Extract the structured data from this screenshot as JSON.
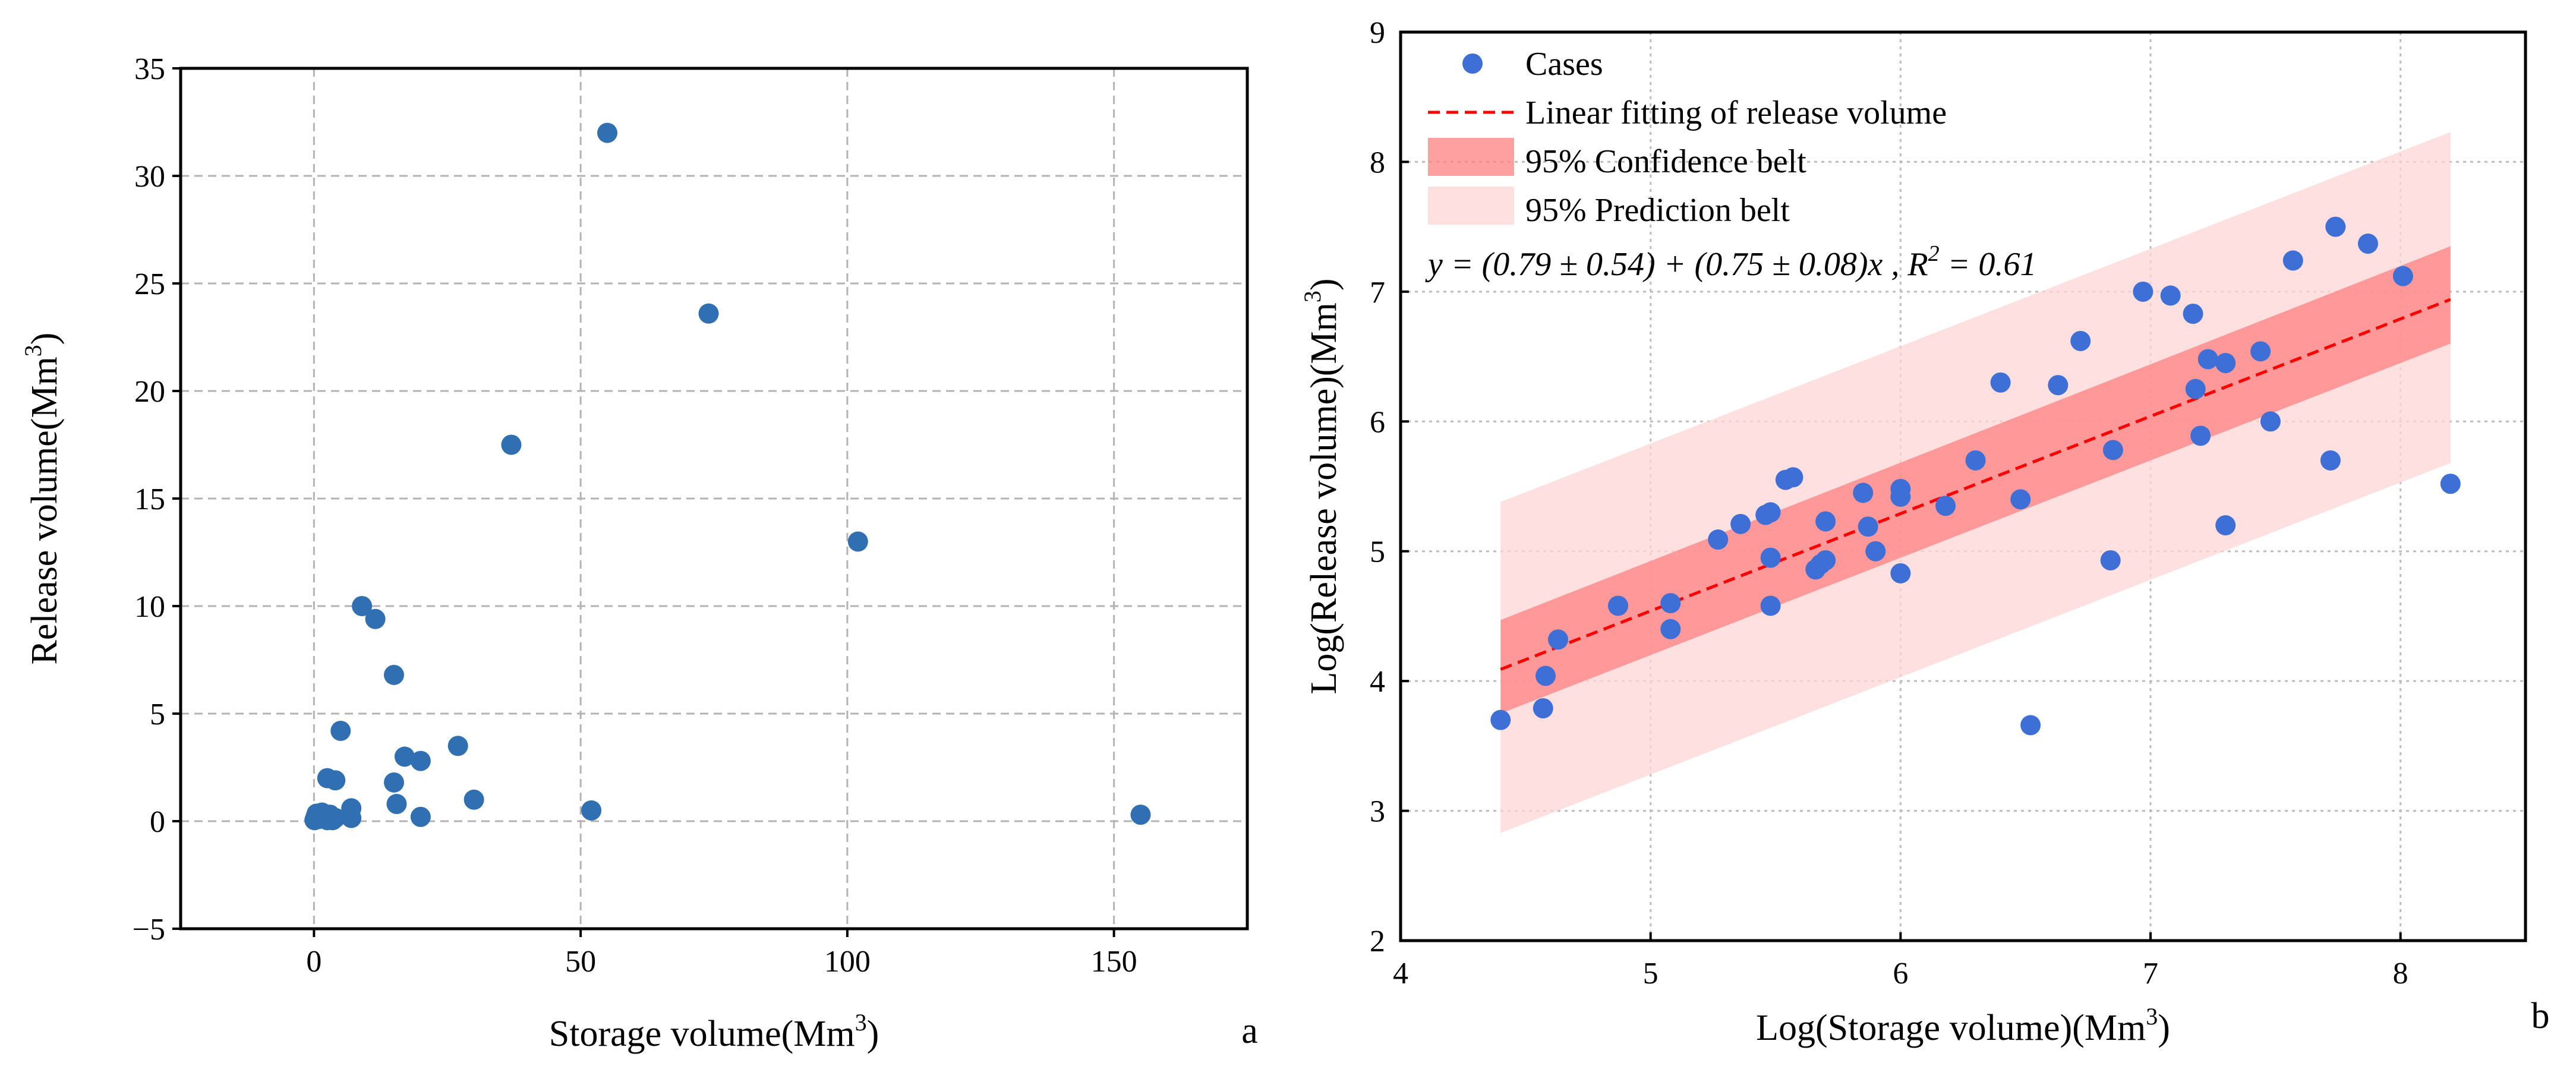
{
  "figure": {
    "panel_a_label": "a",
    "panel_b_label": "b"
  },
  "colors": {
    "marker_a": "#2f6fb2",
    "marker_b": "#3d6fd6",
    "fit_line": "#ff0000",
    "confidence": "#ff8080",
    "prediction": "#ffd6d6"
  },
  "chart_data": [
    {
      "type": "scatter",
      "title": "",
      "xlabel": "Storage volume(Mm",
      "xlabel_sup": "3",
      "xlabel_suffix": ")",
      "ylabel": "Release volume(Mm",
      "ylabel_sup": "3",
      "ylabel_suffix": ")",
      "xlim": [
        -25,
        175
      ],
      "ylim": [
        -5,
        35
      ],
      "xticks": [
        0,
        50,
        100,
        150
      ],
      "yticks": [
        -5,
        0,
        5,
        10,
        15,
        20,
        25,
        30,
        35
      ],
      "xtick_labels": [
        "0",
        "50",
        "100",
        "150"
      ],
      "ytick_labels": [
        "−5",
        "0",
        "5",
        "10",
        "15",
        "20",
        "25",
        "30",
        "35"
      ],
      "grid": true,
      "points": [
        [
          0.1,
          0.05
        ],
        [
          0.3,
          0.2
        ],
        [
          0.5,
          0.35
        ],
        [
          0.8,
          0.1
        ],
        [
          1.0,
          0.3
        ],
        [
          1.5,
          0.4
        ],
        [
          2.0,
          0.2
        ],
        [
          2.5,
          0.05
        ],
        [
          3.0,
          0.3
        ],
        [
          3.5,
          0.05
        ],
        [
          4.0,
          0.15
        ],
        [
          2.5,
          2.0
        ],
        [
          4.0,
          1.9
        ],
        [
          5.0,
          4.2
        ],
        [
          7.0,
          0.6
        ],
        [
          7.0,
          0.15
        ],
        [
          9.0,
          10.0
        ],
        [
          11.5,
          9.4
        ],
        [
          15.0,
          6.8
        ],
        [
          15.0,
          1.8
        ],
        [
          15.5,
          0.8
        ],
        [
          17.0,
          3.0
        ],
        [
          20.0,
          2.8
        ],
        [
          20.0,
          0.2
        ],
        [
          27.0,
          3.5
        ],
        [
          30.0,
          1.0
        ],
        [
          37.0,
          17.5
        ],
        [
          52.0,
          0.5
        ],
        [
          55.0,
          32.0
        ],
        [
          74.0,
          23.6
        ],
        [
          102.0,
          13.0
        ],
        [
          155.0,
          0.3
        ]
      ]
    },
    {
      "type": "scatter",
      "title": "",
      "xlabel": "Log(Storage volume)(Mm",
      "xlabel_sup": "3",
      "xlabel_suffix": ")",
      "ylabel": "Log(Release volume)(Mm",
      "ylabel_sup": "3",
      "ylabel_suffix": ")",
      "xlim": [
        4,
        8.5
      ],
      "ylim": [
        2,
        9
      ],
      "xticks": [
        4,
        5,
        6,
        7,
        8
      ],
      "yticks": [
        2,
        3,
        4,
        5,
        6,
        7,
        8,
        9
      ],
      "xtick_labels": [
        "4",
        "5",
        "6",
        "7",
        "8"
      ],
      "ytick_labels": [
        "2",
        "3",
        "4",
        "5",
        "6",
        "7",
        "8",
        "9"
      ],
      "grid": true,
      "legend_position": "top-left",
      "legend": [
        {
          "kind": "marker",
          "label": "Cases"
        },
        {
          "kind": "dashed-line",
          "label": "Linear fitting of release volume"
        },
        {
          "kind": "confidence-patch",
          "label": "95% Confidence belt"
        },
        {
          "kind": "prediction-patch",
          "label": "95% Prediction belt"
        }
      ],
      "equation": "y = (0.79 ± 0.54) + (0.75 ± 0.08)x , R",
      "equation_sup": "2",
      "equation_suffix": " = 0.61",
      "fit": {
        "intercept": 0.79,
        "slope": 0.75,
        "x_range": [
          4.4,
          8.2
        ],
        "r2": 0.61
      },
      "confidence_band": {
        "x": [
          4.4,
          8.2
        ],
        "lower": [
          3.75,
          6.6
        ],
        "upper": [
          4.47,
          7.35
        ]
      },
      "prediction_band": {
        "x": [
          4.4,
          8.2
        ],
        "lower": [
          2.83,
          5.68
        ],
        "upper": [
          5.38,
          8.23
        ]
      },
      "points": [
        [
          4.4,
          3.7
        ],
        [
          4.57,
          3.79
        ],
        [
          4.58,
          4.04
        ],
        [
          4.63,
          4.32
        ],
        [
          4.87,
          4.58
        ],
        [
          5.08,
          4.4
        ],
        [
          5.08,
          4.6
        ],
        [
          5.27,
          5.09
        ],
        [
          5.36,
          5.21
        ],
        [
          5.46,
          5.28
        ],
        [
          5.48,
          5.3
        ],
        [
          5.48,
          4.95
        ],
        [
          5.48,
          4.58
        ],
        [
          5.54,
          5.55
        ],
        [
          5.57,
          5.57
        ],
        [
          5.66,
          4.86
        ],
        [
          5.68,
          4.9
        ],
        [
          5.7,
          4.93
        ],
        [
          5.7,
          5.23
        ],
        [
          5.85,
          5.45
        ],
        [
          5.87,
          5.19
        ],
        [
          5.9,
          5.0
        ],
        [
          6.0,
          4.83
        ],
        [
          6.0,
          5.42
        ],
        [
          6.0,
          5.48
        ],
        [
          6.18,
          5.35
        ],
        [
          6.3,
          5.7
        ],
        [
          6.4,
          6.3
        ],
        [
          6.48,
          5.4
        ],
        [
          6.52,
          3.66
        ],
        [
          6.63,
          6.28
        ],
        [
          6.72,
          6.62
        ],
        [
          6.84,
          4.93
        ],
        [
          6.85,
          5.78
        ],
        [
          6.97,
          7.0
        ],
        [
          7.08,
          6.97
        ],
        [
          7.17,
          6.83
        ],
        [
          7.18,
          6.25
        ],
        [
          7.2,
          5.89
        ],
        [
          7.23,
          6.48
        ],
        [
          7.3,
          5.2
        ],
        [
          7.3,
          6.45
        ],
        [
          7.44,
          6.54
        ],
        [
          7.48,
          6.0
        ],
        [
          7.57,
          7.24
        ],
        [
          7.72,
          5.7
        ],
        [
          7.74,
          7.5
        ],
        [
          7.87,
          7.37
        ],
        [
          8.01,
          7.12
        ],
        [
          8.2,
          5.52
        ]
      ]
    }
  ]
}
